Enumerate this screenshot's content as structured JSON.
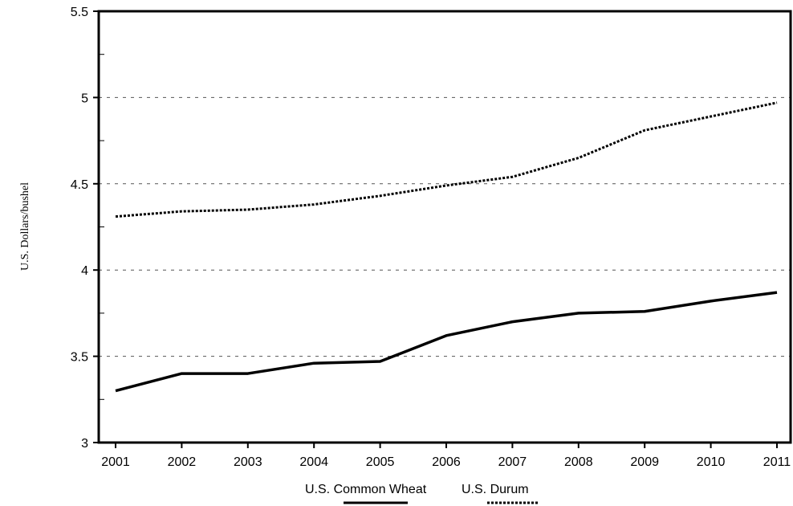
{
  "chart_data": {
    "type": "line",
    "title": "",
    "xlabel": "",
    "ylabel": "U.S. Dollars/bushel",
    "categories": [
      "2001",
      "2002",
      "2003",
      "2004",
      "2005",
      "2006",
      "2007",
      "2008",
      "2009",
      "2010",
      "2011"
    ],
    "ylim": [
      3,
      5.5
    ],
    "yticks": [
      "3",
      "3.5",
      "4",
      "4.5",
      "5",
      "5.5"
    ],
    "grid": "horizontal dashed at labeled ticks",
    "legend_position": "bottom-center",
    "series": [
      {
        "name": "U.S. Common Wheat",
        "style": "solid",
        "color": "#000000",
        "values": [
          3.3,
          3.4,
          3.4,
          3.46,
          3.47,
          3.62,
          3.7,
          3.75,
          3.76,
          3.82,
          3.87
        ]
      },
      {
        "name": "U.S. Durum",
        "style": "dotted",
        "color": "#000000",
        "values": [
          4.31,
          4.34,
          4.35,
          4.38,
          4.43,
          4.49,
          4.54,
          4.65,
          4.81,
          4.89,
          4.97
        ]
      }
    ]
  }
}
